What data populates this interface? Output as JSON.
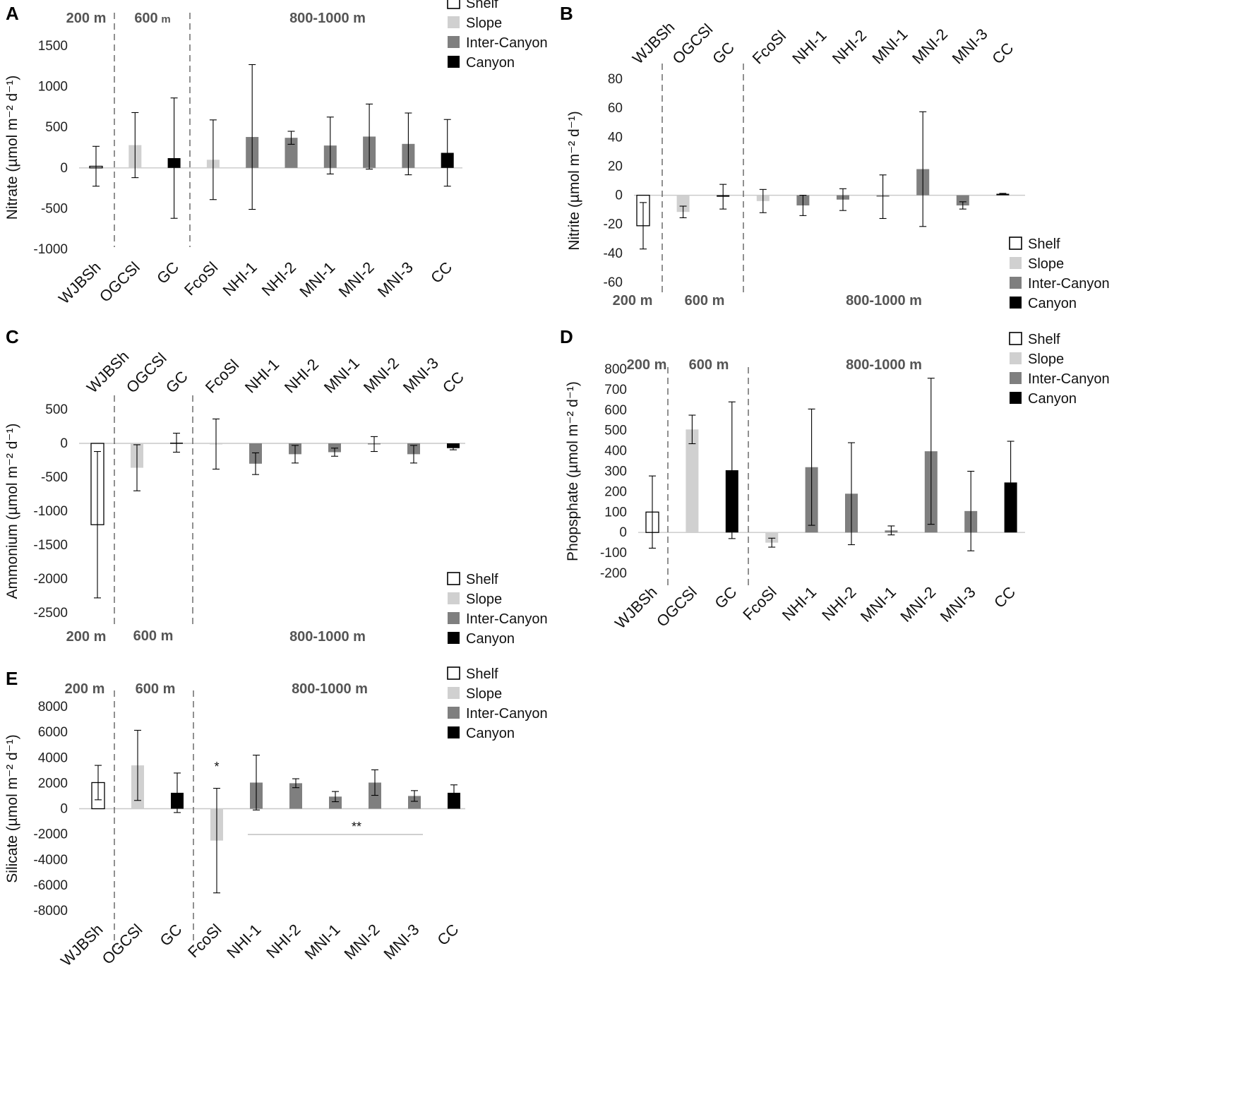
{
  "legend": [
    {
      "label": "Shelf",
      "color": "#ffffff"
    },
    {
      "label": "Slope",
      "color": "#d0d0d0"
    },
    {
      "label": "Inter-Canyon",
      "color": "#7f7f7f"
    },
    {
      "label": "Canyon",
      "color": "#000000"
    }
  ],
  "depth_zones": {
    "shelf": "200 m",
    "slope": "600",
    "slope_unit": "m",
    "slope_full": "600 m",
    "deep": "800-1000 m"
  },
  "categories": [
    "WJBSh",
    "OGCSl",
    "GC",
    "FcoSl",
    "NHI-1",
    "NHI-2",
    "MNI-1",
    "MNI-2",
    "MNI-3",
    "CC"
  ],
  "category_groups": [
    "shelf",
    "slope",
    "canyon",
    "slope",
    "inter-canyon",
    "inter-canyon",
    "inter-canyon",
    "inter-canyon",
    "inter-canyon",
    "canyon"
  ],
  "chart_data": [
    {
      "panel": "A",
      "type": "bar",
      "ylabel": "Nitrate (µmol m⁻² d⁻¹)",
      "ylim": [
        -1000,
        1500
      ],
      "yticks": [
        -1000,
        -500,
        0,
        500,
        1000,
        1500
      ],
      "categories": [
        "WJBSh",
        "OGCSl",
        "GC",
        "FcoSl",
        "NHI-1",
        "NHI-2",
        "MNI-1",
        "MNI-2",
        "MNI-3",
        "CC"
      ],
      "values": [
        20,
        280,
        120,
        100,
        380,
        370,
        275,
        385,
        295,
        185
      ],
      "errors": [
        245,
        400,
        740,
        490,
        890,
        80,
        350,
        400,
        380,
        410
      ],
      "grid": false,
      "legend_position": "top-right"
    },
    {
      "panel": "B",
      "type": "bar",
      "ylabel": "Nitrite (µmol m⁻² d⁻¹)",
      "ylim": [
        -60,
        80
      ],
      "yticks": [
        -60,
        -40,
        -20,
        0,
        20,
        40,
        60,
        80
      ],
      "categories": [
        "WJBSh",
        "OGCSl",
        "GC",
        "FcoSl",
        "NHI-1",
        "NHI-2",
        "MNI-1",
        "MNI-2",
        "MNI-3",
        "CC"
      ],
      "values": [
        -21,
        -11.5,
        -1,
        -4,
        -7,
        -3,
        -1,
        18,
        -7,
        1
      ],
      "errors": [
        16,
        4,
        8.5,
        8,
        7,
        7.5,
        15,
        39.5,
        2.5,
        0.3
      ],
      "grid": false,
      "legend_position": "bottom-right"
    },
    {
      "panel": "C",
      "type": "bar",
      "ylabel": "Ammonium (µmol m⁻² d⁻¹)",
      "ylim": [
        -2500,
        500
      ],
      "yticks": [
        -2500,
        -2000,
        -1500,
        -1000,
        -500,
        0,
        500
      ],
      "categories": [
        "WJBSh",
        "OGCSl",
        "GC",
        "FcoSl",
        "NHI-1",
        "NHI-2",
        "MNI-1",
        "MNI-2",
        "MNI-3",
        "CC"
      ],
      "values": [
        -1200,
        -360,
        10,
        -10,
        -300,
        -160,
        -130,
        -10,
        -160,
        -70
      ],
      "errors": [
        1080,
        340,
        140,
        370,
        160,
        130,
        60,
        110,
        130,
        25
      ],
      "grid": false,
      "legend_position": "bottom-right"
    },
    {
      "panel": "D",
      "type": "bar",
      "ylabel": "Phopsphate (µmol m⁻² d⁻¹)",
      "ylim": [
        -200,
        800
      ],
      "yticks": [
        -200,
        -100,
        0,
        100,
        200,
        300,
        400,
        500,
        600,
        700,
        800
      ],
      "categories": [
        "WJBSh",
        "OGCSl",
        "GC",
        "FcoSl",
        "NHI-1",
        "NHI-2",
        "MNI-1",
        "MNI-2",
        "MNI-3",
        "CC"
      ],
      "values": [
        100,
        505,
        305,
        -50,
        320,
        190,
        10,
        398,
        105,
        245
      ],
      "errors": [
        177,
        70,
        335,
        22,
        285,
        250,
        22,
        358,
        195,
        202
      ],
      "grid": false,
      "legend_position": "top-right"
    },
    {
      "panel": "E",
      "type": "bar",
      "ylabel": "Silicate (µmol m⁻² d⁻¹)",
      "ylim": [
        -8000,
        8000
      ],
      "yticks": [
        -8000,
        -6000,
        -4000,
        -2000,
        0,
        2000,
        4000,
        6000,
        8000
      ],
      "categories": [
        "WJBSh",
        "OGCSl",
        "GC",
        "FcoSl",
        "NHI-1",
        "NHI-2",
        "MNI-1",
        "MNI-2",
        "MNI-3",
        "CC"
      ],
      "values": [
        2050,
        3400,
        1250,
        -2500,
        2050,
        2000,
        950,
        2050,
        1000,
        1250
      ],
      "errors": [
        1350,
        2750,
        1550,
        4100,
        2150,
        350,
        400,
        1000,
        420,
        620
      ],
      "annotations": [
        {
          "text": "*",
          "category": "FcoSl"
        },
        {
          "text": "**",
          "from": "NHI-1",
          "to": "MNI-3"
        }
      ],
      "grid": false,
      "legend_position": "top-right"
    }
  ]
}
